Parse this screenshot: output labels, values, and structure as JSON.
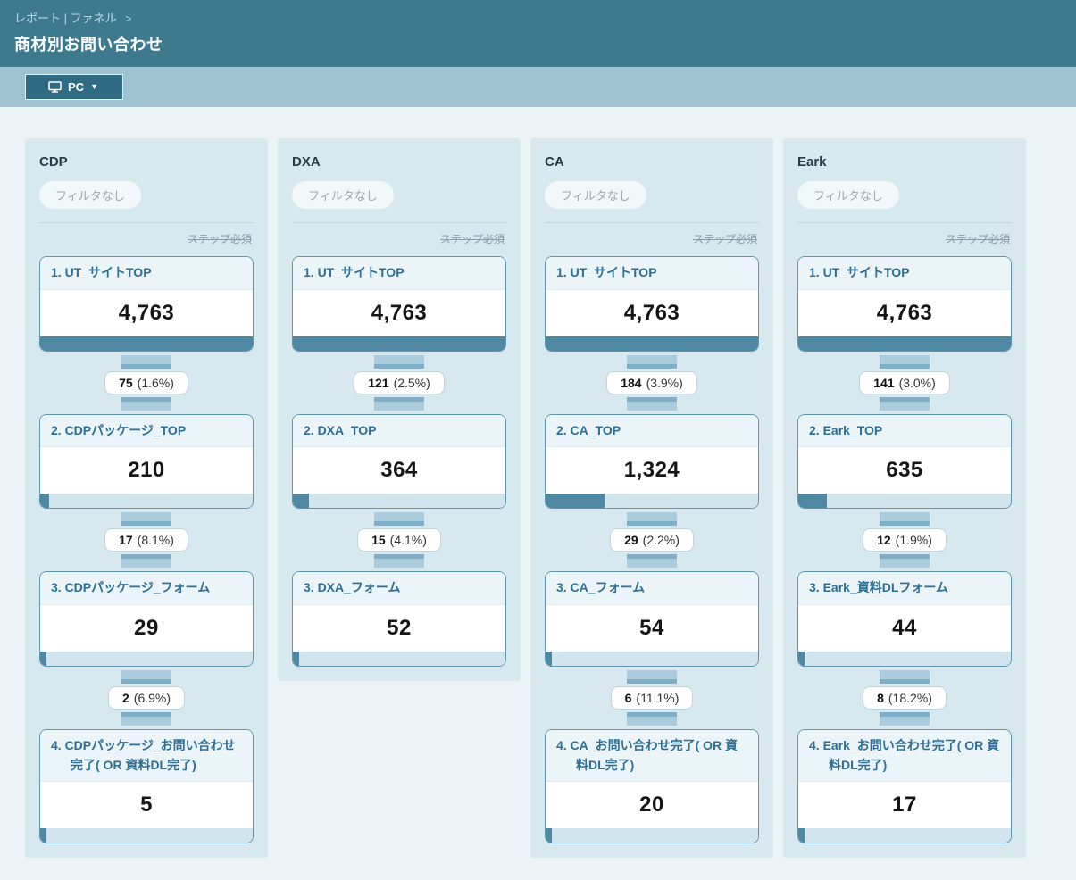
{
  "header": {
    "breadcrumb": "レポート | ファネル",
    "breadcrumb_arrow": ">",
    "title": "商材別お問い合わせ"
  },
  "toolbar": {
    "device_label": "PC",
    "device_icon": "monitor-icon",
    "caret": "▼"
  },
  "colors": {
    "header_bg": "#3e7a8e",
    "band_bg": "#9fc2d1",
    "page_bg": "#ecf3f6",
    "panel_bg": "#d8e8ef",
    "bar_fill": "#4e88a3",
    "bar_track": "#d2e4ed",
    "step_label_text": "#2e6e94",
    "device_button_bg": "#2f6c83"
  },
  "funnels": [
    {
      "name": "CDP",
      "filter_label": "フィルタなし",
      "step_required_label": "ステップ必須",
      "steps": [
        {
          "label": "1. UT_サイトTOP",
          "value": 4763,
          "value_display": "4,763"
        },
        {
          "label": "2. CDPパッケージ_TOP",
          "value": 210,
          "value_display": "210"
        },
        {
          "label": "3. CDPパッケージ_フォーム",
          "value": 29,
          "value_display": "29"
        },
        {
          "label": "4. CDPパッケージ_お問い合わせ完了( OR 資料DL完了)",
          "value": 5,
          "value_display": "5"
        }
      ],
      "transitions": [
        {
          "count": "75",
          "pct_display": "(1.6%)"
        },
        {
          "count": "17",
          "pct_display": "(8.1%)"
        },
        {
          "count": "2",
          "pct_display": "(6.9%)"
        }
      ]
    },
    {
      "name": "DXA",
      "filter_label": "フィルタなし",
      "step_required_label": "ステップ必須",
      "steps": [
        {
          "label": "1. UT_サイトTOP",
          "value": 4763,
          "value_display": "4,763"
        },
        {
          "label": "2. DXA_TOP",
          "value": 364,
          "value_display": "364"
        },
        {
          "label": "3. DXA_フォーム",
          "value": 52,
          "value_display": "52"
        }
      ],
      "transitions": [
        {
          "count": "121",
          "pct_display": "(2.5%)"
        },
        {
          "count": "15",
          "pct_display": "(4.1%)"
        }
      ]
    },
    {
      "name": "CA",
      "filter_label": "フィルタなし",
      "step_required_label": "ステップ必須",
      "steps": [
        {
          "label": "1. UT_サイトTOP",
          "value": 4763,
          "value_display": "4,763"
        },
        {
          "label": "2. CA_TOP",
          "value": 1324,
          "value_display": "1,324"
        },
        {
          "label": "3. CA_フォーム",
          "value": 54,
          "value_display": "54"
        },
        {
          "label": "4. CA_お問い合わせ完了( OR 資料DL完了)",
          "value": 20,
          "value_display": "20"
        }
      ],
      "transitions": [
        {
          "count": "184",
          "pct_display": "(3.9%)"
        },
        {
          "count": "29",
          "pct_display": "(2.2%)"
        },
        {
          "count": "6",
          "pct_display": "(11.1%)"
        }
      ]
    },
    {
      "name": "Eark",
      "filter_label": "フィルタなし",
      "step_required_label": "ステップ必須",
      "steps": [
        {
          "label": "1. UT_サイトTOP",
          "value": 4763,
          "value_display": "4,763"
        },
        {
          "label": "2. Eark_TOP",
          "value": 635,
          "value_display": "635"
        },
        {
          "label": "3. Eark_資料DLフォーム",
          "value": 44,
          "value_display": "44"
        },
        {
          "label": "4. Eark_お問い合わせ完了( OR 資料DL完了)",
          "value": 17,
          "value_display": "17"
        }
      ],
      "transitions": [
        {
          "count": "141",
          "pct_display": "(3.0%)"
        },
        {
          "count": "12",
          "pct_display": "(1.9%)"
        },
        {
          "count": "8",
          "pct_display": "(18.2%)"
        }
      ]
    }
  ]
}
